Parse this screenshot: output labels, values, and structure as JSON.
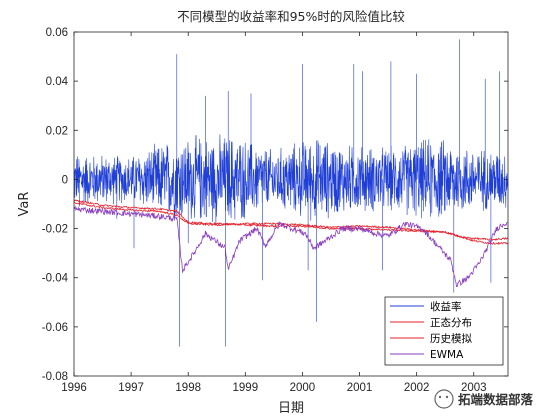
{
  "chart_data": {
    "type": "line",
    "title": "不同模型的收益率和95%时的风险值比较",
    "xlabel": "日期",
    "ylabel": "VaR",
    "xlim": [
      1996,
      2003.6
    ],
    "ylim": [
      -0.08,
      0.06
    ],
    "x_ticks": [
      "1996",
      "1997",
      "1998",
      "1999",
      "2000",
      "2001",
      "2002",
      "2003"
    ],
    "y_ticks": [
      "-0.08",
      "-0.06",
      "-0.04",
      "-0.02",
      "0",
      "0.02",
      "0.04",
      "0.06"
    ],
    "grid": false,
    "legend_position": "bottom-right",
    "series": [
      {
        "name": "收益率",
        "color": "#1f3fd6",
        "amplitude_env": [
          [
            1996,
            0.01
          ],
          [
            1997,
            0.009
          ],
          [
            1997.8,
            0.016
          ],
          [
            1998.8,
            0.017
          ],
          [
            1999.5,
            0.011
          ],
          [
            2000.2,
            0.016
          ],
          [
            2000.8,
            0.013
          ],
          [
            2001.5,
            0.012
          ],
          [
            2002.3,
            0.016
          ],
          [
            2003,
            0.012
          ],
          [
            2003.6,
            0.011
          ]
        ],
        "spikes": [
          [
            1996.1,
            -0.011
          ],
          [
            1996.75,
            -0.016
          ],
          [
            1997.05,
            -0.028
          ],
          [
            1997.8,
            0.051
          ],
          [
            1997.85,
            -0.068
          ],
          [
            1998.0,
            -0.026
          ],
          [
            1998.3,
            0.034
          ],
          [
            1998.65,
            -0.068
          ],
          [
            1998.7,
            0.036
          ],
          [
            1999.1,
            0.035
          ],
          [
            1999.3,
            -0.041
          ],
          [
            2000.0,
            0.047
          ],
          [
            2000.1,
            -0.037
          ],
          [
            2000.25,
            -0.058
          ],
          [
            2000.9,
            0.047
          ],
          [
            2001.05,
            0.044
          ],
          [
            2001.4,
            -0.037
          ],
          [
            2001.55,
            0.048
          ],
          [
            2002.0,
            0.043
          ],
          [
            2002.65,
            -0.046
          ],
          [
            2002.75,
            0.057
          ],
          [
            2003.2,
            0.041
          ],
          [
            2003.3,
            -0.042
          ],
          [
            2003.45,
            0.044
          ]
        ]
      },
      {
        "name": "正态分布",
        "color": "#e8202a",
        "values": [
          [
            1996,
            -0.0095
          ],
          [
            1996.5,
            -0.0115
          ],
          [
            1997,
            -0.0125
          ],
          [
            1997.5,
            -0.013
          ],
          [
            1997.8,
            -0.0145
          ],
          [
            1998,
            -0.018
          ],
          [
            1998.5,
            -0.0185
          ],
          [
            1999,
            -0.018
          ],
          [
            1999.5,
            -0.018
          ],
          [
            2000,
            -0.0185
          ],
          [
            2000.5,
            -0.0195
          ],
          [
            2001,
            -0.019
          ],
          [
            2001.5,
            -0.0195
          ],
          [
            2002,
            -0.0205
          ],
          [
            2002.5,
            -0.0215
          ],
          [
            2002.8,
            -0.0235
          ],
          [
            2003,
            -0.025
          ],
          [
            2003.3,
            -0.026
          ],
          [
            2003.6,
            -0.026
          ]
        ]
      },
      {
        "name": "历史模拟",
        "color": "#e8202a",
        "values": [
          [
            1996,
            -0.0085
          ],
          [
            1996.5,
            -0.0105
          ],
          [
            1997,
            -0.0115
          ],
          [
            1997.5,
            -0.012
          ],
          [
            1997.8,
            -0.013
          ],
          [
            1998,
            -0.0175
          ],
          [
            1998.5,
            -0.018
          ],
          [
            1999,
            -0.0185
          ],
          [
            1999.5,
            -0.019
          ],
          [
            2000,
            -0.019
          ],
          [
            2000.5,
            -0.02
          ],
          [
            2001,
            -0.02
          ],
          [
            2001.5,
            -0.0205
          ],
          [
            2002,
            -0.021
          ],
          [
            2002.5,
            -0.0215
          ],
          [
            2002.8,
            -0.0235
          ],
          [
            2003,
            -0.024
          ],
          [
            2003.3,
            -0.0245
          ],
          [
            2003.6,
            -0.024
          ]
        ]
      },
      {
        "name": "EWMA",
        "color": "#8a3fbf",
        "values": [
          [
            1996,
            -0.012
          ],
          [
            1996.5,
            -0.013
          ],
          [
            1997,
            -0.014
          ],
          [
            1997.5,
            -0.015
          ],
          [
            1997.8,
            -0.016
          ],
          [
            1997.9,
            -0.037
          ],
          [
            1998.1,
            -0.03
          ],
          [
            1998.3,
            -0.022
          ],
          [
            1998.65,
            -0.028
          ],
          [
            1998.7,
            -0.037
          ],
          [
            1998.9,
            -0.025
          ],
          [
            1999.2,
            -0.02
          ],
          [
            1999.35,
            -0.027
          ],
          [
            1999.6,
            -0.018
          ],
          [
            2000.05,
            -0.022
          ],
          [
            2000.2,
            -0.028
          ],
          [
            2000.4,
            -0.025
          ],
          [
            2000.7,
            -0.02
          ],
          [
            2001,
            -0.02
          ],
          [
            2001.3,
            -0.022
          ],
          [
            2001.5,
            -0.023
          ],
          [
            2001.8,
            -0.018
          ],
          [
            2002.1,
            -0.02
          ],
          [
            2002.6,
            -0.033
          ],
          [
            2002.7,
            -0.043
          ],
          [
            2002.9,
            -0.04
          ],
          [
            2003.1,
            -0.034
          ],
          [
            2003.3,
            -0.025
          ],
          [
            2003.4,
            -0.02
          ],
          [
            2003.6,
            -0.017
          ]
        ]
      }
    ]
  },
  "watermark": {
    "text": "拓端数据部落"
  }
}
